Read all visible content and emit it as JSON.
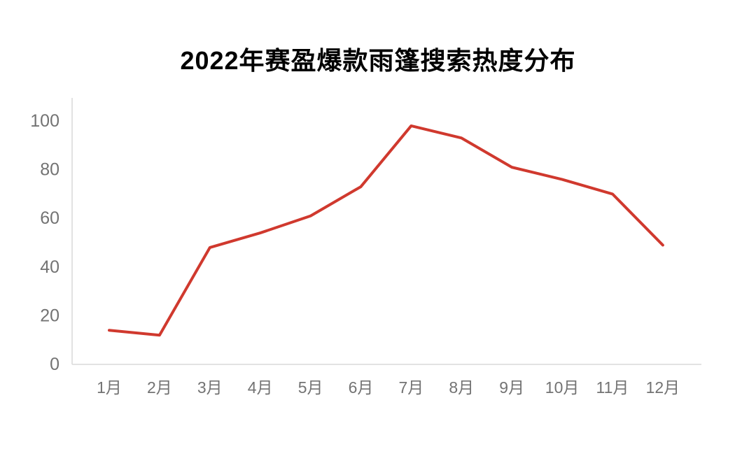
{
  "chart_data": {
    "type": "line",
    "title": "2022年赛盈爆款雨篷搜索热度分布",
    "categories": [
      "1月",
      "2月",
      "3月",
      "4月",
      "5月",
      "6月",
      "7月",
      "8月",
      "9月",
      "10月",
      "11月",
      "12月"
    ],
    "values": [
      14,
      12,
      48,
      54,
      61,
      73,
      98,
      93,
      81,
      76,
      70,
      49
    ],
    "xlabel": "",
    "ylabel": "",
    "ylim": [
      0,
      100
    ],
    "yticks": [
      0,
      20,
      40,
      60,
      80,
      100
    ],
    "grid": false,
    "legend_position": "none",
    "line_color": "#d0392e",
    "line_width": 4,
    "axis_color": "#d9d9d9",
    "tick_text_color": "#737373",
    "title_color": "#000000",
    "background_color": "#ffffff"
  }
}
